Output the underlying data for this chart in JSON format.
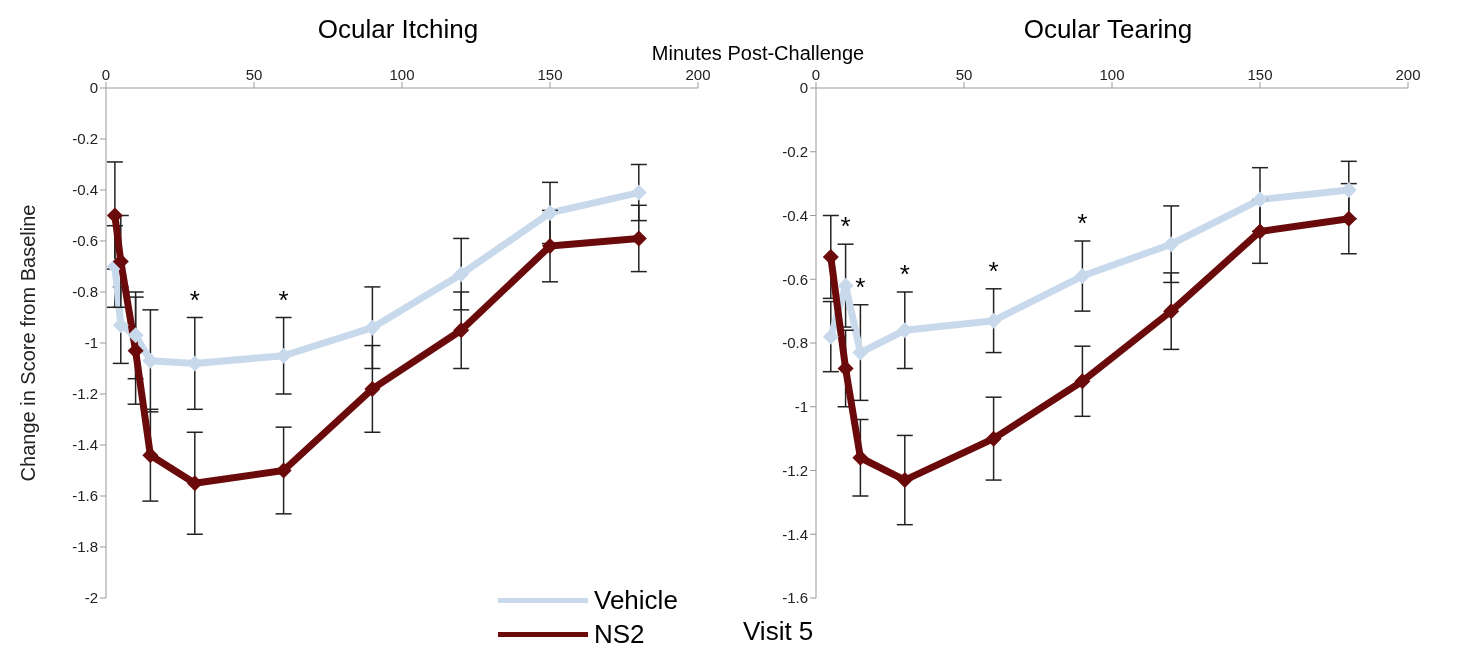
{
  "chart_data": [
    {
      "type": "line",
      "title": "Ocular Itching",
      "xlabel": "Minutes Post-Challenge",
      "ylabel": "Change in Score  from Baseline",
      "x": [
        3,
        5,
        10,
        15,
        30,
        60,
        90,
        120,
        150,
        180
      ],
      "series": [
        {
          "name": "Vehicle",
          "color": "#c9d9ec",
          "values": [
            -0.7,
            -0.93,
            -0.97,
            -1.07,
            -1.08,
            -1.05,
            -0.94,
            -0.73,
            -0.49,
            -0.41
          ],
          "errors": [
            0.16,
            0.15,
            0.17,
            0.2,
            0.18,
            0.15,
            0.16,
            0.14,
            0.12,
            0.11
          ]
        },
        {
          "name": "NS2",
          "color": "#6b0a0a",
          "values": [
            -0.5,
            -0.68,
            -1.03,
            -1.44,
            -1.55,
            -1.5,
            -1.18,
            -0.95,
            -0.62,
            -0.59
          ],
          "errors": [
            0.21,
            0.18,
            0.21,
            0.18,
            0.2,
            0.17,
            0.17,
            0.15,
            0.14,
            0.13
          ]
        }
      ],
      "xlim": [
        0,
        200
      ],
      "xticks": [
        0,
        50,
        100,
        150,
        200
      ],
      "ylim": [
        -2,
        0
      ],
      "yticks": [
        0,
        -0.2,
        -0.4,
        -0.6,
        -0.8,
        -1,
        -1.2,
        -1.4,
        -1.6,
        -1.8,
        -2
      ],
      "annotations": [
        {
          "text": "*",
          "x": 30,
          "y": -0.9
        },
        {
          "text": "*",
          "x": 60,
          "y": -0.9
        },
        "Visit 5"
      ],
      "legend": "bottom",
      "marker": "diamond",
      "line_style": "solid",
      "grid": false
    },
    {
      "type": "line",
      "title": "Ocular Tearing",
      "x": [
        5,
        10,
        15,
        30,
        60,
        90,
        120,
        150,
        180
      ],
      "series": [
        {
          "color": "#c9d9ec",
          "values": [
            -0.78,
            -0.62,
            -0.83,
            -0.76,
            -0.73,
            -0.59,
            -0.49,
            -0.35,
            -0.32
          ],
          "errors": [
            0.11,
            0.13,
            0.15,
            0.12,
            0.1,
            0.11,
            0.12,
            0.1,
            0.09
          ]
        },
        {
          "color": "#6b0a0a",
          "values": [
            -0.53,
            -0.88,
            -1.16,
            -1.23,
            -1.1,
            -0.92,
            -0.7,
            -0.45,
            -0.41
          ],
          "errors": [
            0.13,
            0.12,
            0.12,
            0.14,
            0.13,
            0.11,
            0.12,
            0.1,
            0.11
          ]
        }
      ],
      "xlim": [
        0,
        200
      ],
      "xticks": [
        0,
        50,
        100,
        150,
        200
      ],
      "ylim": [
        -1.6,
        0
      ],
      "yticks": [
        0,
        -0.2,
        -0.4,
        -0.6,
        -0.8,
        -1,
        -1.2,
        -1.4,
        -1.6
      ],
      "annotations": [
        {
          "text": "*",
          "x": 10,
          "y": -0.49
        },
        {
          "text": "*",
          "x": 15,
          "y": -0.68
        },
        {
          "text": "*",
          "x": 30,
          "y": -0.64
        },
        {
          "text": "*",
          "x": 60,
          "y": -0.63
        },
        {
          "text": "*",
          "x": 90,
          "y": -0.48
        }
      ],
      "legend": false,
      "marker": "diamond",
      "line_style": "solid",
      "grid": false
    }
  ]
}
